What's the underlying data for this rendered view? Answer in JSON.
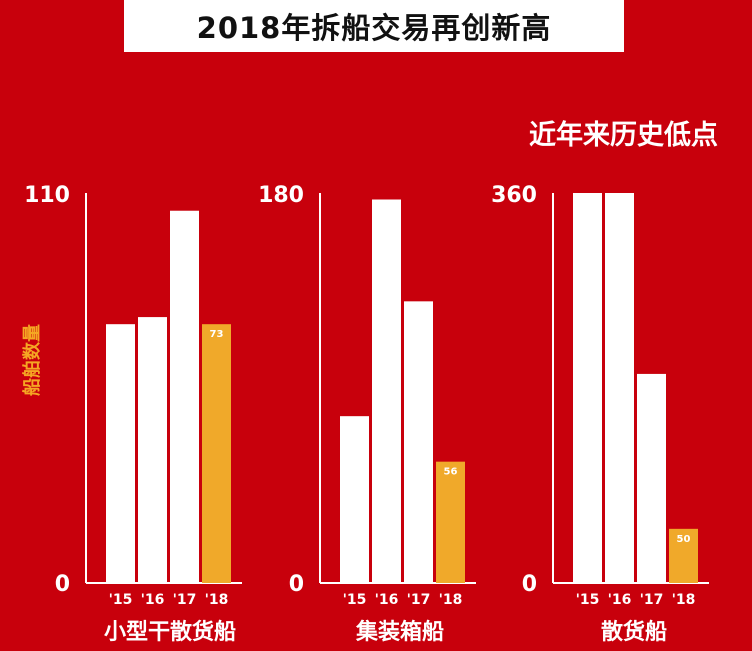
{
  "header": {
    "title": "2018年拆船交易再创新高",
    "subtitle": "近年来历史低点"
  },
  "colors": {
    "background": "#c8000c",
    "bar": "#ffffff",
    "highlight": "#f0a92a",
    "axis_label": "#f5a623"
  },
  "chart_data": [
    {
      "type": "bar",
      "category_label": "小型干散货船",
      "ylabel": "船舶数量",
      "ylim": [
        0,
        110
      ],
      "y_ticks": [
        "110",
        "0"
      ],
      "categories": [
        "'15",
        "'16",
        "'17",
        "'18"
      ],
      "values": [
        73,
        75,
        105,
        73
      ],
      "highlight_index": 3,
      "data_labels": [
        "",
        "",
        "",
        "73"
      ]
    },
    {
      "type": "bar",
      "category_label": "集装箱船",
      "ylim": [
        0,
        180
      ],
      "y_ticks": [
        "180",
        "0"
      ],
      "categories": [
        "'15",
        "'16",
        "'17",
        "'18"
      ],
      "values": [
        77,
        177,
        130,
        56
      ],
      "highlight_index": 3,
      "data_labels": [
        "",
        "",
        "",
        "56"
      ]
    },
    {
      "type": "bar",
      "category_label": "散货船",
      "ylim": [
        0,
        360
      ],
      "y_ticks": [
        "360",
        "0"
      ],
      "categories": [
        "'15",
        "'16",
        "'17",
        "'18"
      ],
      "values": [
        360,
        360,
        193,
        50
      ],
      "highlight_index": 3,
      "data_labels": [
        "",
        "",
        "",
        "50"
      ]
    }
  ]
}
